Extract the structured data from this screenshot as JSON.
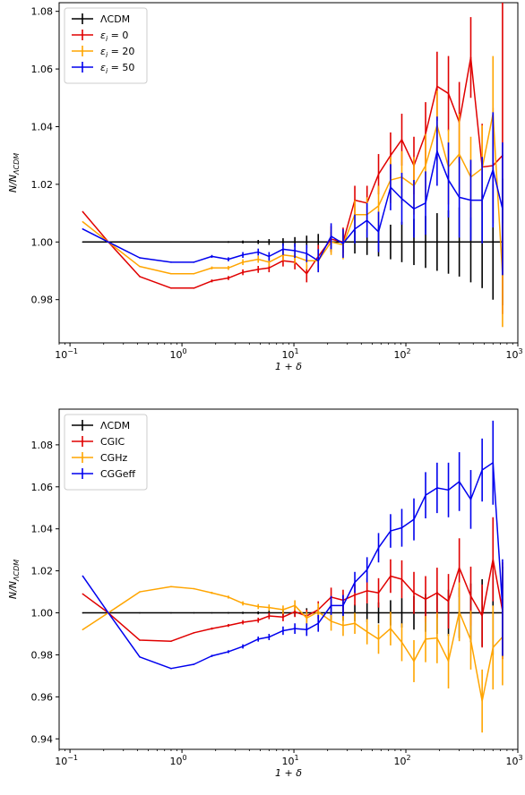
{
  "chart_data": [
    {
      "type": "line",
      "xscale": "log",
      "xlabel": "1 + δ",
      "ylabel": "N/N_ΛCDM",
      "xlim": [
        0.08,
        1000
      ],
      "ylim": [
        0.965,
        1.083
      ],
      "xticks": [
        {
          "value": 0.1,
          "base": "10",
          "exp": "−1"
        },
        {
          "value": 1,
          "base": "10",
          "exp": "0"
        },
        {
          "value": 10,
          "base": "10",
          "exp": "1"
        },
        {
          "value": 100,
          "base": "10",
          "exp": "2"
        },
        {
          "value": 1000,
          "base": "10",
          "exp": "3"
        }
      ],
      "yticks": [
        {
          "value": 0.98,
          "label": "0.98"
        },
        {
          "value": 1.0,
          "label": "1.00"
        },
        {
          "value": 1.02,
          "label": "1.02"
        },
        {
          "value": 1.04,
          "label": "1.04"
        },
        {
          "value": 1.06,
          "label": "1.06"
        },
        {
          "value": 1.08,
          "label": "1.08"
        }
      ],
      "grid": false,
      "legend_position": "top-left",
      "x": [
        0.13,
        0.22,
        0.42,
        0.8,
        1.28,
        1.85,
        2.6,
        3.5,
        4.8,
        6.0,
        8.0,
        10.2,
        13.0,
        16.5,
        21.5,
        27.5,
        35,
        45,
        57,
        73,
        92,
        118,
        150,
        190,
        240,
        300,
        380,
        480,
        600,
        730
      ],
      "series": [
        {
          "name": "ΛCDM",
          "color": "#000000",
          "y": [
            1.0,
            1.0,
            1.0,
            1.0,
            1.0,
            1.0,
            1.0,
            1.0,
            1.0,
            1.0,
            1.0,
            1.0,
            1.0,
            1.0,
            1.0,
            1.0,
            1.0,
            1.0,
            1.0,
            1.0,
            1.0,
            1.0,
            1.0,
            1.0,
            1.0,
            1.0,
            1.0,
            1.0,
            1.0,
            1.0
          ],
          "err": [
            0,
            0,
            0,
            0,
            0,
            0.0002,
            0.0003,
            0.0005,
            0.0007,
            0.001,
            0.0013,
            0.0017,
            0.0022,
            0.0028,
            0.0035,
            0.0038,
            0.004,
            0.0045,
            0.005,
            0.006,
            0.007,
            0.008,
            0.009,
            0.01,
            0.011,
            0.012,
            0.014,
            0.016,
            0.02,
            0.022
          ]
        },
        {
          "name": "ε_i = 0",
          "color": "#e00000",
          "y": [
            1.0105,
            1.0,
            0.988,
            0.984,
            0.984,
            0.9865,
            0.9875,
            0.9895,
            0.9905,
            0.991,
            0.9935,
            0.993,
            0.989,
            0.995,
            1.001,
            1.0,
            1.0145,
            1.0135,
            1.0235,
            1.03,
            1.0355,
            1.0265,
            1.0375,
            1.054,
            1.0515,
            1.0415,
            1.064,
            1.026,
            1.0265,
            1.03
          ],
          "err": [
            0,
            0,
            0,
            0,
            0,
            0.0005,
            0.0007,
            0.001,
            0.0012,
            0.0015,
            0.002,
            0.0025,
            0.003,
            0.004,
            0.0045,
            0.005,
            0.005,
            0.006,
            0.007,
            0.008,
            0.009,
            0.01,
            0.011,
            0.012,
            0.013,
            0.014,
            0.014,
            0.015,
            0.02,
            0.055
          ]
        },
        {
          "name": "ε_i = 20",
          "color": "#ffa500",
          "y": [
            1.007,
            1.0,
            0.9915,
            0.989,
            0.989,
            0.991,
            0.991,
            0.993,
            0.994,
            0.993,
            0.9955,
            0.995,
            0.9935,
            0.9935,
            1.0,
            0.999,
            1.0095,
            1.0095,
            1.0125,
            1.0215,
            1.0225,
            1.0195,
            1.0265,
            1.0405,
            1.026,
            1.0305,
            1.0225,
            1.0255,
            1.0445,
            0.9885
          ],
          "err": [
            0,
            0,
            0,
            0,
            0,
            0.0005,
            0.0007,
            0.001,
            0.0012,
            0.0015,
            0.002,
            0.0025,
            0.003,
            0.004,
            0.0045,
            0.005,
            0.005,
            0.006,
            0.007,
            0.008,
            0.009,
            0.01,
            0.011,
            0.012,
            0.013,
            0.014,
            0.014,
            0.015,
            0.02,
            0.018
          ]
        },
        {
          "name": "ε_i = 50",
          "color": "#0000ee",
          "y": [
            1.0045,
            1.0,
            0.9945,
            0.993,
            0.993,
            0.995,
            0.994,
            0.9955,
            0.9965,
            0.995,
            0.9975,
            0.997,
            0.996,
            0.9935,
            1.002,
            0.9995,
            1.0045,
            1.0075,
            1.0035,
            1.019,
            1.015,
            1.0115,
            1.0135,
            1.0315,
            1.0215,
            1.0155,
            1.0145,
            1.0145,
            1.025,
            1.0115
          ],
          "err": [
            0,
            0,
            0,
            0,
            0,
            0.0005,
            0.0007,
            0.001,
            0.0012,
            0.0015,
            0.002,
            0.0025,
            0.003,
            0.004,
            0.0045,
            0.005,
            0.005,
            0.006,
            0.007,
            0.008,
            0.009,
            0.01,
            0.011,
            0.012,
            0.013,
            0.014,
            0.014,
            0.015,
            0.02,
            0.023
          ]
        }
      ]
    },
    {
      "type": "line",
      "xscale": "log",
      "xlabel": "1 + δ",
      "ylabel": "N/N_ΛCDM",
      "xlim": [
        0.08,
        1000
      ],
      "ylim": [
        0.935,
        1.097
      ],
      "xticks": [
        {
          "value": 0.1,
          "base": "10",
          "exp": "−1"
        },
        {
          "value": 1,
          "base": "10",
          "exp": "0"
        },
        {
          "value": 10,
          "base": "10",
          "exp": "1"
        },
        {
          "value": 100,
          "base": "10",
          "exp": "2"
        },
        {
          "value": 1000,
          "base": "10",
          "exp": "3"
        }
      ],
      "yticks": [
        {
          "value": 0.94,
          "label": "0.94"
        },
        {
          "value": 0.96,
          "label": "0.96"
        },
        {
          "value": 0.98,
          "label": "0.98"
        },
        {
          "value": 1.0,
          "label": "1.00"
        },
        {
          "value": 1.02,
          "label": "1.02"
        },
        {
          "value": 1.04,
          "label": "1.04"
        },
        {
          "value": 1.06,
          "label": "1.06"
        },
        {
          "value": 1.08,
          "label": "1.08"
        }
      ],
      "grid": false,
      "legend_position": "top-left",
      "x": [
        0.13,
        0.22,
        0.42,
        0.8,
        1.28,
        1.85,
        2.6,
        3.5,
        4.8,
        6.0,
        8.0,
        10.2,
        13.0,
        16.5,
        21.5,
        27.5,
        35,
        45,
        57,
        73,
        92,
        118,
        150,
        190,
        240,
        300,
        380,
        480,
        600,
        730
      ],
      "series": [
        {
          "name": "ΛCDM",
          "color": "#000000",
          "y": [
            1.0,
            1.0,
            1.0,
            1.0,
            1.0,
            1.0,
            1.0,
            1.0,
            1.0,
            1.0,
            1.0,
            1.0,
            1.0,
            1.0,
            1.0,
            1.0,
            1.0,
            1.0,
            1.0,
            1.0,
            1.0,
            1.0,
            1.0,
            1.0,
            1.0,
            1.0,
            1.0,
            1.0,
            1.0,
            1.0
          ],
          "err": [
            0,
            0,
            0,
            0,
            0,
            0.0002,
            0.0003,
            0.0005,
            0.0007,
            0.001,
            0.0013,
            0.0017,
            0.0022,
            0.0028,
            0.0035,
            0.0038,
            0.004,
            0.0045,
            0.005,
            0.006,
            0.007,
            0.008,
            0.009,
            0.01,
            0.011,
            0.012,
            0.014,
            0.016,
            0.02,
            0.022
          ]
        },
        {
          "name": "CGIC",
          "color": "#e00000",
          "y": [
            1.009,
            1.0,
            0.987,
            0.9865,
            0.9905,
            0.9925,
            0.994,
            0.9955,
            0.9965,
            0.9985,
            0.998,
            1.0005,
            0.9985,
            1.0015,
            1.0075,
            1.006,
            1.0085,
            1.0105,
            1.0095,
            1.0175,
            1.016,
            1.0095,
            1.0065,
            1.0095,
            1.0055,
            1.0215,
            1.008,
            0.9985,
            1.0255,
            1.001
          ],
          "err": [
            0,
            0,
            0,
            0,
            0,
            0.0005,
            0.0007,
            0.001,
            0.0012,
            0.0015,
            0.002,
            0.0025,
            0.003,
            0.004,
            0.0045,
            0.005,
            0.005,
            0.006,
            0.007,
            0.008,
            0.009,
            0.01,
            0.011,
            0.012,
            0.013,
            0.014,
            0.014,
            0.015,
            0.02,
            0.023
          ]
        },
        {
          "name": "CGHz",
          "color": "#ffa500",
          "y": [
            0.992,
            1.0,
            1.01,
            1.0125,
            1.0115,
            1.0095,
            1.0075,
            1.0045,
            1.003,
            1.0025,
            1.0015,
            1.0035,
            0.9975,
            1.0005,
            0.996,
            0.994,
            0.995,
            0.991,
            0.9875,
            0.9925,
            0.986,
            0.977,
            0.9875,
            0.988,
            0.977,
            1.0005,
            0.987,
            0.958,
            0.9835,
            0.9885
          ],
          "err": [
            0,
            0,
            0,
            0,
            0,
            0.0005,
            0.0007,
            0.001,
            0.0012,
            0.0015,
            0.002,
            0.0025,
            0.003,
            0.004,
            0.0045,
            0.005,
            0.005,
            0.006,
            0.007,
            0.008,
            0.009,
            0.01,
            0.011,
            0.012,
            0.013,
            0.014,
            0.014,
            0.015,
            0.02,
            0.023
          ]
        },
        {
          "name": "CGGeff",
          "color": "#0000ee",
          "y": [
            1.0175,
            1.0,
            0.979,
            0.9735,
            0.9755,
            0.9795,
            0.9815,
            0.984,
            0.9875,
            0.9885,
            0.9915,
            0.9925,
            0.992,
            0.995,
            1.0035,
            1.0035,
            1.0145,
            1.0205,
            1.031,
            1.039,
            1.0405,
            1.0445,
            1.056,
            1.0595,
            1.0585,
            1.0625,
            1.054,
            1.068,
            1.0715,
            1.0025
          ],
          "err": [
            0,
            0,
            0,
            0,
            0,
            0.0005,
            0.0007,
            0.001,
            0.0012,
            0.0015,
            0.002,
            0.0025,
            0.003,
            0.004,
            0.0045,
            0.005,
            0.005,
            0.006,
            0.007,
            0.008,
            0.009,
            0.01,
            0.011,
            0.012,
            0.013,
            0.014,
            0.014,
            0.015,
            0.02,
            0.023
          ]
        }
      ]
    }
  ]
}
